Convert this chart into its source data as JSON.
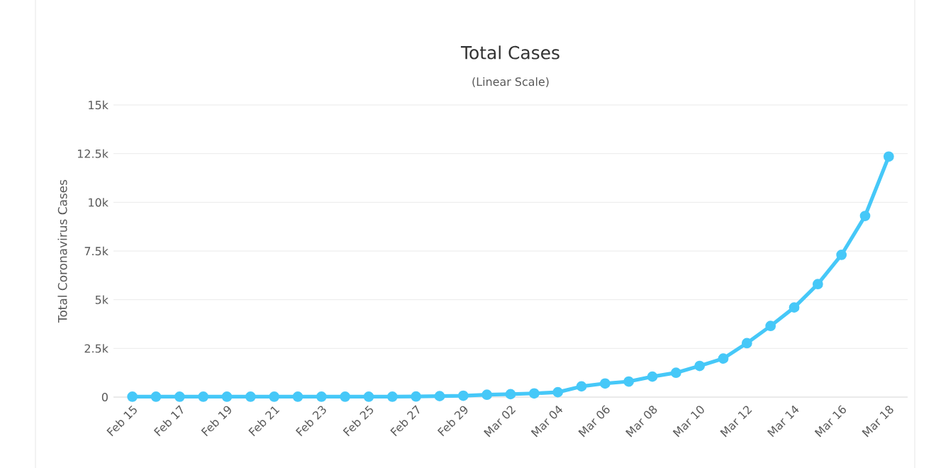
{
  "chart_data": {
    "type": "line",
    "title": "Total Cases",
    "subtitle": "(Linear Scale)",
    "ylabel": "Total Coronavirus Cases",
    "categories": [
      "Feb 15",
      null,
      "Feb 17",
      null,
      "Feb 19",
      null,
      "Feb 21",
      null,
      "Feb 23",
      null,
      "Feb 25",
      null,
      "Feb 27",
      null,
      "Feb 29",
      null,
      "Mar 02",
      null,
      "Mar 04",
      null,
      "Mar 06",
      null,
      "Mar 08",
      null,
      "Mar 10",
      null,
      "Mar 12",
      null,
      "Mar 14",
      null,
      "Mar 16",
      null,
      "Mar 18"
    ],
    "series": [
      {
        "color": "#46c8f8",
        "values": [
          20,
          20,
          20,
          20,
          20,
          20,
          20,
          20,
          20,
          20,
          20,
          20,
          30,
          50,
          70,
          120,
          150,
          190,
          250,
          550,
          700,
          800,
          1050,
          1250,
          1600,
          1980,
          2770,
          3650,
          4600,
          5800,
          7300,
          9300,
          12350
        ]
      }
    ],
    "ylim": [
      0,
      15000
    ],
    "yticks": [
      0,
      {
        "value": 2500,
        "label": "2.5k"
      },
      {
        "value": 5000,
        "label": "5k"
      },
      {
        "value": 7500,
        "label": "7.5k"
      },
      {
        "value": 10000,
        "label": "10k"
      },
      {
        "value": 12500,
        "label": "12.5k"
      },
      {
        "value": 15000,
        "label": "15k"
      }
    ],
    "grid": "y",
    "marker": "circle",
    "line_style": "solid"
  }
}
